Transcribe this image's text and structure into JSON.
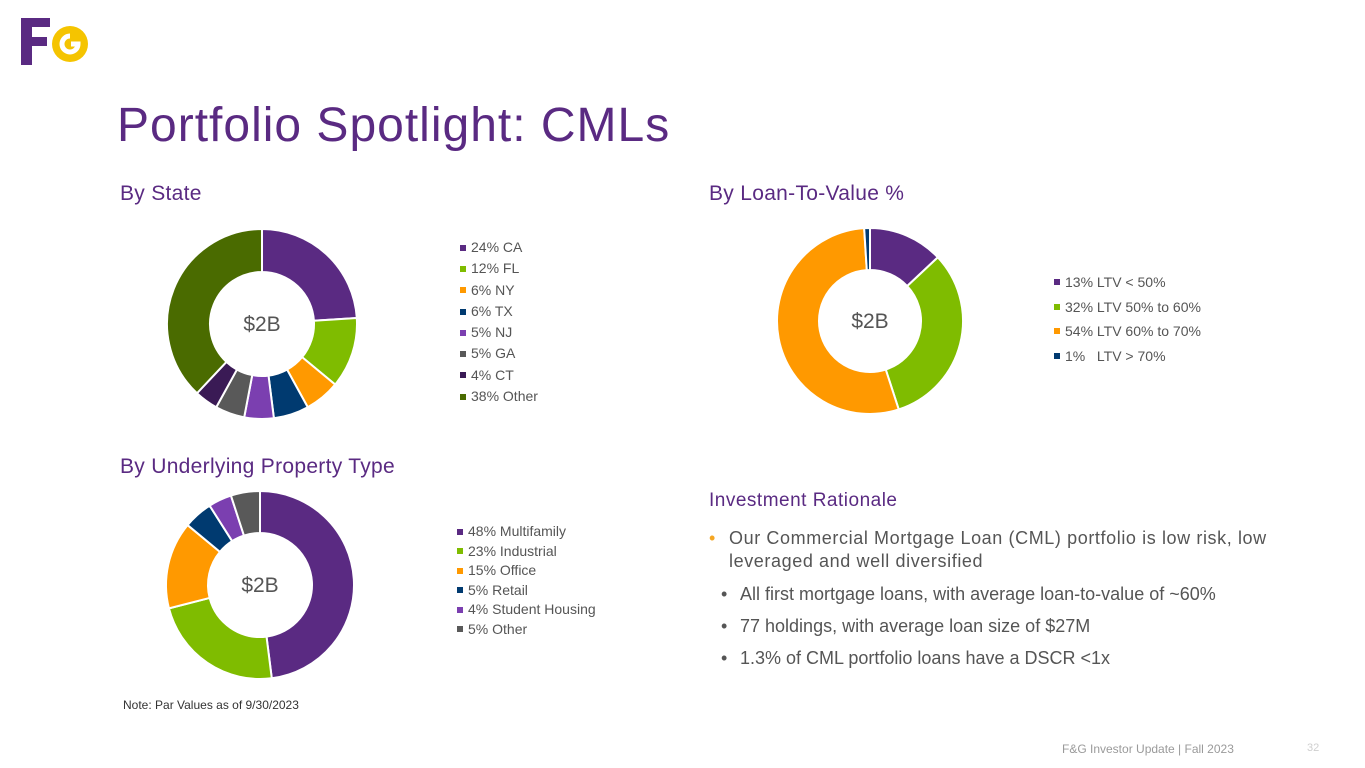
{
  "logo": {
    "text": "F&G",
    "colors": {
      "f": "#5a2a82",
      "g": "#f5c400"
    }
  },
  "title": "Portfolio Spotlight:  CMLs",
  "colors": {
    "purple": "#5a2a82",
    "green": "#7fbc00",
    "orange": "#ff9900",
    "navy": "#003a70",
    "violet": "#7b3fb0",
    "gray": "#595959",
    "darkpurple": "#3a1a55",
    "olive": "#4a6b00",
    "accent_bullet": "#f5a623"
  },
  "chart_data": [
    {
      "type": "pie",
      "title": "By State",
      "center_label": "$2B",
      "categories": [
        "CA",
        "FL",
        "NY",
        "TX",
        "NJ",
        "GA",
        "CT",
        "Other"
      ],
      "values": [
        24,
        12,
        6,
        6,
        5,
        5,
        4,
        38
      ],
      "legend": [
        "24% CA",
        "12% FL",
        "6% NY",
        "6% TX",
        "5% NJ",
        "5% GA",
        "4% CT",
        "38% Other"
      ],
      "colors": [
        "#5a2a82",
        "#7fbc00",
        "#ff9900",
        "#003a70",
        "#7b3fb0",
        "#595959",
        "#3a1a55",
        "#4a6b00"
      ]
    },
    {
      "type": "pie",
      "title": "By Loan-To-Value %",
      "center_label": "$2B",
      "categories": [
        "LTV < 50%",
        "LTV 50% to 60%",
        "LTV 60% to 70%",
        "LTV > 70%"
      ],
      "values": [
        13,
        32,
        54,
        1
      ],
      "legend": [
        "13% LTV < 50%",
        "32% LTV 50% to 60%",
        "54% LTV 60% to 70%",
        "1%   LTV > 70%"
      ],
      "colors": [
        "#5a2a82",
        "#7fbc00",
        "#ff9900",
        "#003a70"
      ]
    },
    {
      "type": "pie",
      "title": "By Underlying Property Type",
      "center_label": "$2B",
      "categories": [
        "Multifamily",
        "Industrial",
        "Office",
        "Retail",
        "Student Housing",
        "Other"
      ],
      "values": [
        48,
        23,
        15,
        5,
        4,
        5
      ],
      "legend": [
        "48% Multifamily",
        "23% Industrial",
        "15% Office",
        "5% Retail",
        "4% Student Housing",
        "5% Other"
      ],
      "colors": [
        "#5a2a82",
        "#7fbc00",
        "#ff9900",
        "#003a70",
        "#7b3fb0",
        "#595959"
      ]
    }
  ],
  "rationale": {
    "title": "Investment Rationale",
    "main_bullet": "Our Commercial Mortgage Loan (CML) portfolio is low risk, low leveraged and well diversified",
    "sub_bullets": [
      "All first mortgage loans, with average loan-to-value of ~60%",
      "77 holdings, with average loan size of $27M",
      "1.3% of CML portfolio loans have a DSCR <1x"
    ],
    "bullet_glyph": "•"
  },
  "note": "Note: Par Values as of 9/30/2023",
  "footer": "F&G Investor Update | Fall 2023",
  "page_number": "32"
}
